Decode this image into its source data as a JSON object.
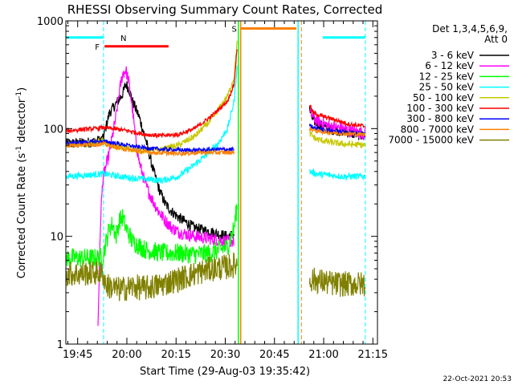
{
  "chart_data": {
    "type": "line",
    "title": "RHESSI Observing Summary Count Rates, Corrected",
    "xlabel": "Start Time (29-Aug-03 19:35:42)",
    "ylabel_main": "Corrected Count Rate (s",
    "ylabel_sup1": "-1",
    "ylabel_mid": " detector",
    "ylabel_sup2": "-1",
    "ylabel_end": ")",
    "yscale": "log",
    "ylim": [
      1,
      1000
    ],
    "xlim_min": [
      5.7,
      100.7
    ],
    "y_ticks": [
      {
        "value": 1,
        "label": "1"
      },
      {
        "value": 10,
        "label": "10"
      },
      {
        "value": 100,
        "label": "100"
      },
      {
        "value": 1000,
        "label": "1000"
      }
    ],
    "x_ticks": [
      {
        "value": 9.3,
        "label": "19:45"
      },
      {
        "value": 24.3,
        "label": "20:00"
      },
      {
        "value": 39.3,
        "label": "20:15"
      },
      {
        "value": 54.3,
        "label": "20:30"
      },
      {
        "value": 69.3,
        "label": "20:45"
      },
      {
        "value": 84.3,
        "label": "21:00"
      },
      {
        "value": 99.3,
        "label": "21:15"
      }
    ],
    "legend_header": [
      "Det 1,3,4,5,6,9,",
      "Att 0"
    ],
    "legend_position": "right",
    "date_stamp": "22-Oct-2021 20:53",
    "flags": [
      {
        "label": "N",
        "color": "#00ffff",
        "ranges": [
          [
            5.7,
            17.2
          ],
          [
            84.0,
            97.0
          ]
        ],
        "y": 700
      },
      {
        "label": "F",
        "color": "#ff0000",
        "ranges": [
          [
            17.5,
            37.0
          ]
        ],
        "y": 580
      },
      {
        "label": "S",
        "color": "#ff8000",
        "ranges": [
          [
            59.2,
            76.0
          ]
        ],
        "y": 850
      }
    ],
    "vertical_lines": [
      {
        "x": 17.2,
        "color": "#00ffff",
        "dash": true
      },
      {
        "x": 58.3,
        "color": "#00ff00",
        "dash": false
      },
      {
        "x": 59.0,
        "color": "#ff8000",
        "dash": false
      },
      {
        "x": 76.5,
        "color": "#00ffff",
        "dash": false
      },
      {
        "x": 77.5,
        "color": "#ff8000",
        "dash": true
      },
      {
        "x": 97.0,
        "color": "#00ffff",
        "dash": true
      }
    ],
    "series": [
      {
        "name": "3 - 6 keV",
        "color": "#000000",
        "noise": 0.05,
        "segments": [
          [
            [
              5.7,
              72
            ],
            [
              12,
              74
            ],
            [
              15,
              76
            ],
            [
              17,
              80
            ],
            [
              19,
              140
            ],
            [
              21,
              170
            ],
            [
              23,
              210
            ],
            [
              24,
              260
            ],
            [
              25,
              230
            ],
            [
              26,
              180
            ],
            [
              28,
              130
            ],
            [
              30,
              80
            ],
            [
              32,
              45
            ],
            [
              34,
              28
            ],
            [
              36,
              20
            ],
            [
              38,
              17
            ],
            [
              40,
              15
            ],
            [
              45,
              12
            ],
            [
              50,
              11
            ],
            [
              55,
              10
            ],
            [
              57,
              10.5
            ]
          ],
          [
            [
              80,
              150
            ],
            [
              81,
              120
            ],
            [
              85,
              100
            ],
            [
              90,
              95
            ],
            [
              93,
              90
            ],
            [
              97,
              85
            ]
          ]
        ]
      },
      {
        "name": "6 - 12 keV",
        "color": "#ff00ff",
        "noise": 0.06,
        "segments": [
          [
            [
              15.5,
              1.5
            ],
            [
              16.3,
              15
            ],
            [
              17,
              35
            ],
            [
              19,
              60
            ],
            [
              21,
              130
            ],
            [
              22,
              220
            ],
            [
              23,
              320
            ],
            [
              24,
              350
            ],
            [
              25,
              260
            ],
            [
              26,
              150
            ],
            [
              27,
              80
            ],
            [
              28,
              50
            ],
            [
              30,
              30
            ],
            [
              32,
              22
            ],
            [
              34,
              17
            ],
            [
              36,
              14
            ],
            [
              38,
              12
            ],
            [
              40,
              11
            ],
            [
              45,
              10
            ],
            [
              50,
              9.5
            ],
            [
              55,
              9
            ],
            [
              57,
              9
            ]
          ],
          [
            [
              80,
              140
            ],
            [
              82,
              120
            ],
            [
              86,
              105
            ],
            [
              90,
              100
            ],
            [
              93,
              95
            ],
            [
              97,
              90
            ]
          ]
        ]
      },
      {
        "name": "12 - 25 keV",
        "color": "#00ff00",
        "noise": 0.09,
        "segments": [
          [
            [
              5.7,
              6.3
            ],
            [
              15,
              6.3
            ],
            [
              17,
              6.5
            ],
            [
              18,
              9
            ],
            [
              19,
              12
            ],
            [
              20,
              13
            ],
            [
              21,
              10
            ],
            [
              22,
              14
            ],
            [
              23,
              15
            ],
            [
              24,
              12
            ],
            [
              26,
              9
            ],
            [
              30,
              7.5
            ],
            [
              35,
              7.0
            ],
            [
              40,
              7.0
            ],
            [
              45,
              6.8
            ],
            [
              50,
              7.0
            ],
            [
              55,
              8
            ],
            [
              57,
              12
            ],
            [
              58,
              20
            ]
          ]
        ]
      },
      {
        "name": "25 - 50 keV",
        "color": "#00ffff",
        "noise": 0.03,
        "segments": [
          [
            [
              5.7,
              36
            ],
            [
              12,
              37
            ],
            [
              17,
              38
            ],
            [
              25,
              35
            ],
            [
              35,
              33
            ],
            [
              40,
              36
            ],
            [
              44,
              44
            ],
            [
              48,
              55
            ],
            [
              52,
              72
            ],
            [
              55,
              100
            ],
            [
              57,
              180
            ],
            [
              58,
              420
            ]
          ],
          [
            [
              80,
              40
            ],
            [
              82,
              38
            ],
            [
              86,
              37
            ],
            [
              90,
              36
            ],
            [
              94,
              36
            ],
            [
              97,
              36
            ]
          ]
        ]
      },
      {
        "name": "50 - 100 keV",
        "color": "#c8c800",
        "noise": 0.03,
        "segments": [
          [
            [
              5.7,
              72
            ],
            [
              12,
              72
            ],
            [
              15,
              75
            ],
            [
              17,
              78
            ],
            [
              19,
              70
            ],
            [
              25,
              65
            ],
            [
              30,
              62
            ],
            [
              35,
              64
            ],
            [
              40,
              70
            ],
            [
              45,
              85
            ],
            [
              50,
              120
            ],
            [
              55,
              200
            ],
            [
              57,
              300
            ],
            [
              58,
              700
            ]
          ],
          [
            [
              80,
              90
            ],
            [
              82,
              80
            ],
            [
              86,
              75
            ],
            [
              90,
              72
            ],
            [
              94,
              71
            ],
            [
              97,
              70
            ]
          ]
        ]
      },
      {
        "name": "100 - 300 keV",
        "color": "#ff0000",
        "noise": 0.02,
        "segments": [
          [
            [
              5.7,
              95
            ],
            [
              10,
              98
            ],
            [
              15,
              100
            ],
            [
              17,
              102
            ],
            [
              20,
              100
            ],
            [
              25,
              95
            ],
            [
              30,
              88
            ],
            [
              35,
              86
            ],
            [
              40,
              88
            ],
            [
              45,
              100
            ],
            [
              50,
              130
            ],
            [
              55,
              180
            ],
            [
              57,
              260
            ],
            [
              58,
              600
            ]
          ],
          [
            [
              80,
              170
            ],
            [
              81,
              140
            ],
            [
              84,
              130
            ],
            [
              88,
              120
            ],
            [
              92,
              110
            ],
            [
              97,
              105
            ]
          ]
        ]
      },
      {
        "name": "300 - 800 keV",
        "color": "#0000ff",
        "noise": 0.02,
        "segments": [
          [
            [
              5.7,
              73
            ],
            [
              12,
              75
            ],
            [
              17,
              76
            ],
            [
              22,
              72
            ],
            [
              27,
              68
            ],
            [
              32,
              65
            ],
            [
              37,
              64
            ],
            [
              42,
              63
            ],
            [
              47,
              63
            ],
            [
              52,
              64
            ],
            [
              57,
              64
            ]
          ],
          [
            [
              80,
              105
            ],
            [
              82,
              100
            ],
            [
              86,
              96
            ],
            [
              90,
              93
            ],
            [
              94,
              91
            ],
            [
              97,
              90
            ]
          ]
        ]
      },
      {
        "name": "800 - 7000 keV",
        "color": "#ff8000",
        "noise": 0.02,
        "segments": [
          [
            [
              5.7,
              70
            ],
            [
              12,
              71
            ],
            [
              17,
              72
            ],
            [
              22,
              66
            ],
            [
              27,
              62
            ],
            [
              32,
              60
            ],
            [
              37,
              59
            ],
            [
              42,
              59
            ],
            [
              47,
              60
            ],
            [
              52,
              60
            ],
            [
              57,
              60
            ]
          ],
          [
            [
              80,
              100
            ],
            [
              82,
              95
            ],
            [
              86,
              92
            ],
            [
              90,
              90
            ],
            [
              94,
              89
            ],
            [
              97,
              88
            ]
          ]
        ]
      },
      {
        "name": "7000 - 15000 keV",
        "color": "#808000",
        "noise": 0.12,
        "segments": [
          [
            [
              5.7,
              4.5
            ],
            [
              10,
              4.5
            ],
            [
              15,
              4.6
            ],
            [
              17,
              4.5
            ],
            [
              18,
              3.5
            ],
            [
              22,
              3.2
            ],
            [
              26,
              3.4
            ],
            [
              30,
              3.3
            ],
            [
              34,
              3.5
            ],
            [
              40,
              4.0
            ],
            [
              45,
              4.5
            ],
            [
              50,
              5.0
            ],
            [
              55,
              5.2
            ],
            [
              58,
              5.5
            ]
          ],
          [
            [
              80,
              4.0
            ],
            [
              84,
              3.8
            ],
            [
              88,
              3.6
            ],
            [
              92,
              3.6
            ],
            [
              97,
              3.6
            ]
          ]
        ]
      }
    ]
  }
}
